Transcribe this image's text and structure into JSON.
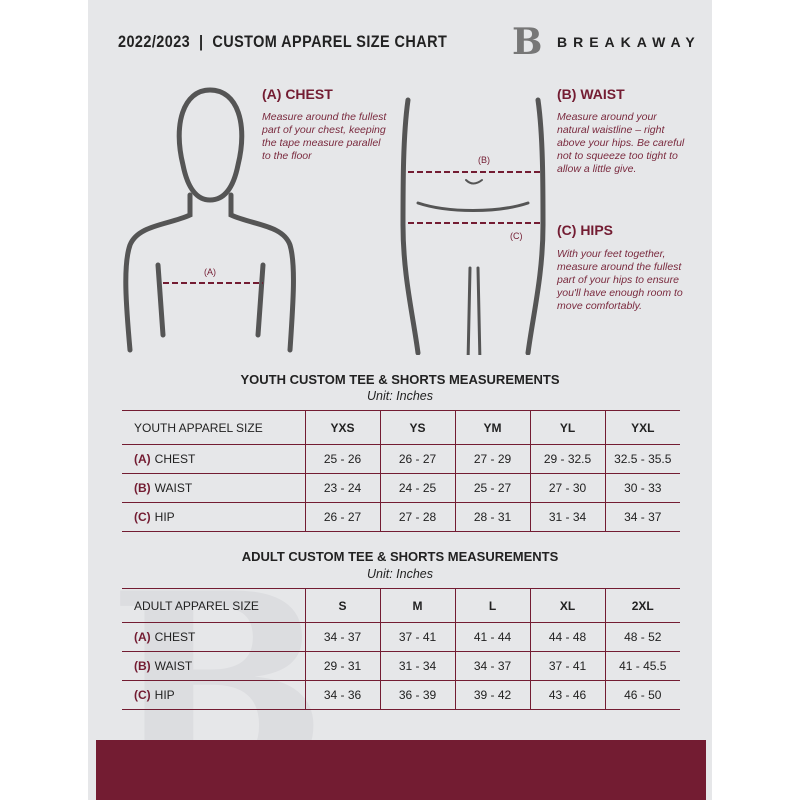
{
  "header": {
    "title": "2022/2023  |  CUSTOM APPAREL SIZE CHART",
    "brand": "BREAKAWAY",
    "logo_letter": "B"
  },
  "measures": {
    "chest": {
      "heading": "(A) CHEST",
      "text": "Measure around the fullest part of your chest, keeping the tape measure parallel to the floor",
      "marker": "(A)"
    },
    "waist": {
      "heading": "(B) WAIST",
      "text": "Measure around your natural waistline – right above your hips. Be careful not to squeeze too tight to allow a little give.",
      "marker": "(B)"
    },
    "hips": {
      "heading": "(C) HIPS",
      "text": "With your feet together, measure around the fullest part of your hips to ensure you'll have enough room to move comfortably.",
      "marker": "(C)"
    }
  },
  "youth": {
    "title": "YOUTH CUSTOM TEE & SHORTS MEASUREMENTS",
    "unit": "Unit: Inches",
    "header": "YOUTH APPAREL SIZE",
    "sizes": [
      "YXS",
      "YS",
      "YM",
      "YL",
      "YXL"
    ],
    "rows": [
      {
        "letter": "(A)",
        "label": "CHEST",
        "values": [
          "25 - 26",
          "26 - 27",
          "27 - 29",
          "29 - 32.5",
          "32.5 - 35.5"
        ]
      },
      {
        "letter": "(B)",
        "label": "WAIST",
        "values": [
          "23 - 24",
          "24 - 25",
          "25 - 27",
          "27 - 30",
          "30 - 33"
        ]
      },
      {
        "letter": "(C)",
        "label": "HIP",
        "values": [
          "26 - 27",
          "27 - 28",
          "28 - 31",
          "31 - 34",
          "34 - 37"
        ]
      }
    ]
  },
  "adult": {
    "title": "ADULT CUSTOM TEE & SHORTS MEASUREMENTS",
    "unit": "Unit: Inches",
    "header": "ADULT APPAREL SIZE",
    "sizes": [
      "S",
      "M",
      "L",
      "XL",
      "2XL"
    ],
    "rows": [
      {
        "letter": "(A)",
        "label": "CHEST",
        "values": [
          "34 - 37",
          "37 - 41",
          "41 - 44",
          "44 - 48",
          "48 - 52"
        ]
      },
      {
        "letter": "(B)",
        "label": "WAIST",
        "values": [
          "29 - 31",
          "31 - 34",
          "34 - 37",
          "37 - 41",
          "41 - 45.5"
        ]
      },
      {
        "letter": "(C)",
        "label": "HIP",
        "values": [
          "34 - 36",
          "36 - 39",
          "39 - 42",
          "43 - 46",
          "46 - 50"
        ]
      }
    ]
  },
  "colors": {
    "accent": "#731c32",
    "background": "#e6e7e9"
  }
}
